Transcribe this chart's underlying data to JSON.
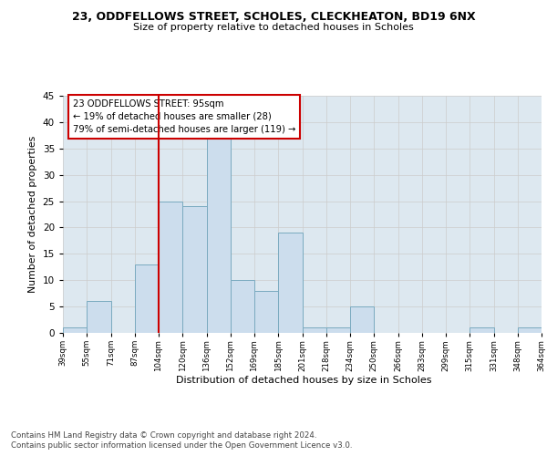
{
  "title_line1": "23, ODDFELLOWS STREET, SCHOLES, CLECKHEATON, BD19 6NX",
  "title_line2": "Size of property relative to detached houses in Scholes",
  "xlabel": "Distribution of detached houses by size in Scholes",
  "ylabel": "Number of detached properties",
  "footer_line1": "Contains HM Land Registry data © Crown copyright and database right 2024.",
  "footer_line2": "Contains public sector information licensed under the Open Government Licence v3.0.",
  "bar_values": [
    1,
    6,
    0,
    13,
    25,
    24,
    37,
    10,
    8,
    19,
    1,
    1,
    5,
    0,
    0,
    0,
    0,
    1,
    0,
    1
  ],
  "bin_labels": [
    "39sqm",
    "55sqm",
    "71sqm",
    "87sqm",
    "104sqm",
    "120sqm",
    "136sqm",
    "152sqm",
    "169sqm",
    "185sqm",
    "201sqm",
    "218sqm",
    "234sqm",
    "250sqm",
    "266sqm",
    "283sqm",
    "299sqm",
    "315sqm",
    "331sqm",
    "348sqm",
    "364sqm"
  ],
  "bar_color": "#ccdded",
  "bar_edge_color": "#7aaabf",
  "bar_edge_width": 0.7,
  "annotation_line1": "23 ODDFELLOWS STREET: 95sqm",
  "annotation_line2": "← 19% of detached houses are smaller (28)",
  "annotation_line3": "79% of semi-detached houses are larger (119) →",
  "annotation_box_facecolor": "#ffffff",
  "annotation_box_edgecolor": "#cc0000",
  "red_line_color": "#cc0000",
  "ylim": [
    0,
    45
  ],
  "yticks": [
    0,
    5,
    10,
    15,
    20,
    25,
    30,
    35,
    40,
    45
  ],
  "grid_color": "#cccccc",
  "plot_bg_color": "#dde8f0"
}
